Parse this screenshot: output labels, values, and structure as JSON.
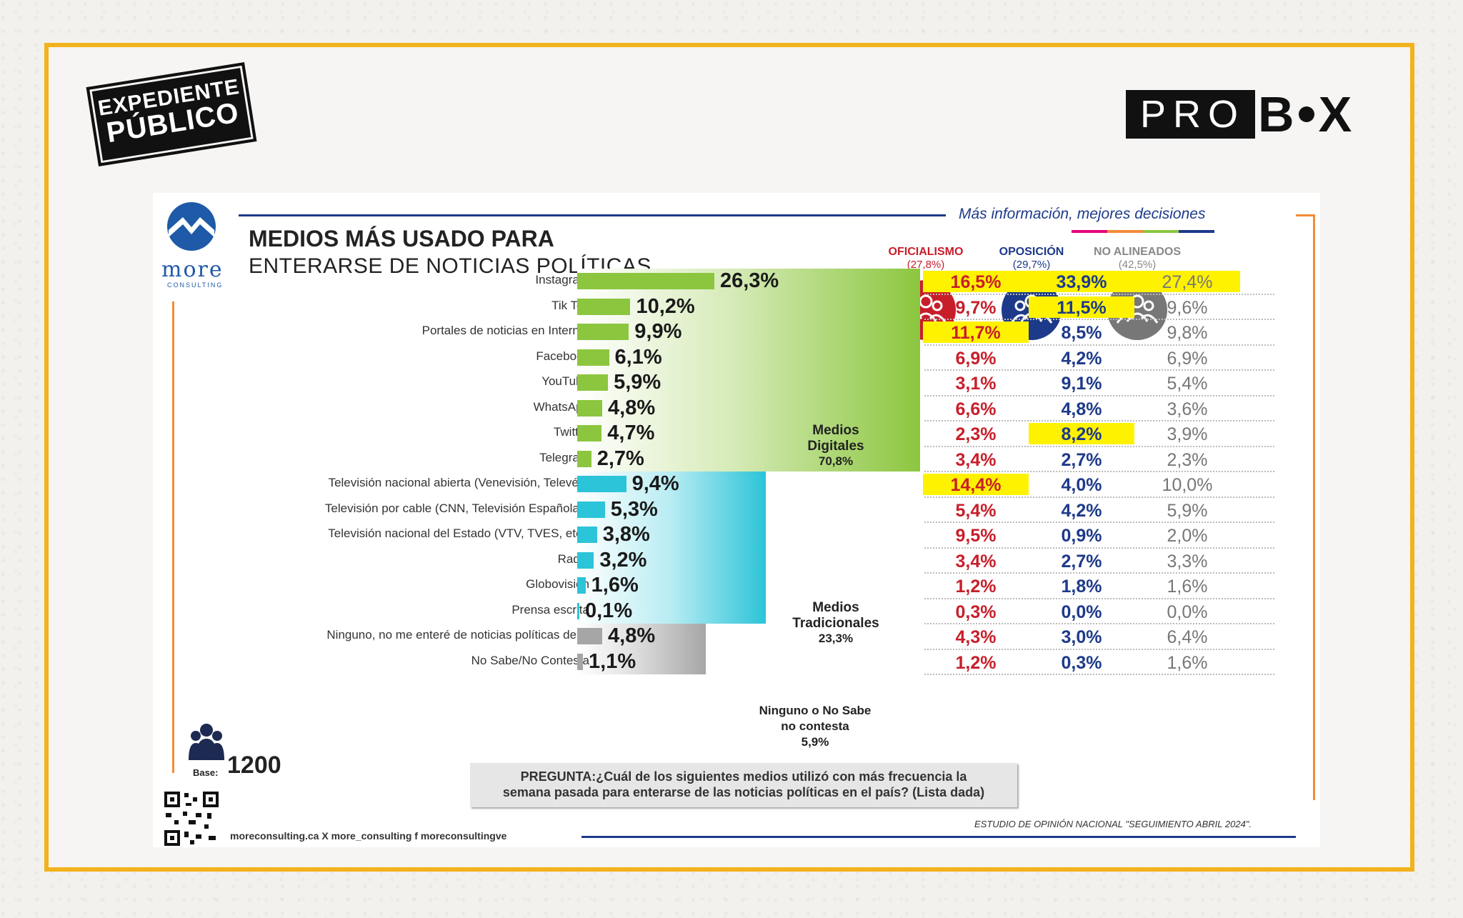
{
  "header": {
    "left_logo": "EXPEDIENTE PÚBLICO",
    "left_logo_line1": "EXPEDIENTE",
    "left_logo_line2": "PÚBLICO",
    "right_logo": "PROBOX",
    "right_logo_pro": "PRO",
    "right_logo_b": "B",
    "right_logo_x": "X"
  },
  "card": {
    "brand": "more",
    "brand_sub": "CONSULTING",
    "slogan": "Más información, mejores decisiones",
    "title_line1": "MEDIOS MÁS USADO PARA",
    "title_line2": "ENTERARSE DE NOTICIAS POLÍTICAS",
    "base_label": "Base:",
    "base_value": "1200",
    "question": "PREGUNTA:¿Cuál de los siguientes medios utilizó con más frecuencia la semana pasada para enterarse de las noticias políticas en el país? (Lista dada)",
    "question_line1": "PREGUNTA:¿Cuál de los siguientes medios utilizó con más frecuencia la",
    "question_line2": "semana pasada para enterarse de las noticias políticas en el país? (Lista dada)",
    "social": "moreconsulting.ca  X more_consulting  f moreconsultingve",
    "study": "ESTUDIO DE OPINIÓN NACIONAL \"SEGUIMIENTO ABRIL 2024\"."
  },
  "colors": {
    "digital": "#8cc63f",
    "traditional": "#2cc4d8",
    "none": "#a6a6a6",
    "oficialismo": "#c81e2a",
    "oposicion": "#1d3a8a",
    "no_alineados": "#777777",
    "highlight": "#fff200",
    "frame": "#f2b21c"
  },
  "chart_data": {
    "type": "bar",
    "orientation": "horizontal",
    "categories": [
      "Instagram",
      "Tik Tok",
      "Portales de noticias en Internet",
      "Facebook",
      "YouTube",
      "WhatsApp",
      "Twitter",
      "Telegram",
      "Televisión nacional abierta (Venevisión, Televén)",
      "Televisión por cable (CNN, Televisión Española...",
      "Televisión nacional del Estado (VTV, TVES, etc.)",
      "Radio",
      "Globovisión",
      "Prensa escrita",
      "Ninguno, no me enteré de noticias políticas del...",
      "No Sabe/No Contesta"
    ],
    "values": [
      26.3,
      10.2,
      9.9,
      6.1,
      5.9,
      4.8,
      4.7,
      2.7,
      9.4,
      5.3,
      3.8,
      3.2,
      1.6,
      0.1,
      4.8,
      1.1
    ],
    "value_labels": [
      "26,3%",
      "10,2%",
      "9,9%",
      "6,1%",
      "5,9%",
      "4,8%",
      "4,7%",
      "2,7%",
      "9,4%",
      "5,3%",
      "3,8%",
      "3,2%",
      "1,6%",
      "0,1%",
      "4,8%",
      "1,1%"
    ],
    "row_group": [
      "digital",
      "digital",
      "digital",
      "digital",
      "digital",
      "digital",
      "digital",
      "digital",
      "traditional",
      "traditional",
      "traditional",
      "traditional",
      "traditional",
      "traditional",
      "none",
      "none"
    ],
    "groups": [
      {
        "key": "digital",
        "name_line1": "Medios",
        "name_line2": "Digitales",
        "value": 70.8,
        "value_label": "70,8%"
      },
      {
        "key": "traditional",
        "name_line1": "Medios",
        "name_line2": "Tradicionales",
        "value": 23.3,
        "value_label": "23,3%"
      },
      {
        "key": "none",
        "name_line1": "Ninguno o No Sabe",
        "name_line2": "no contesta",
        "value": 5.9,
        "value_label": "5,9%"
      }
    ],
    "xlim": [
      0,
      30
    ],
    "table": {
      "columns": [
        {
          "name": "OFICIALISMO",
          "share": "(27,8%)",
          "color_key": "oficialismo"
        },
        {
          "name": "OPOSICIÓN",
          "share": "(29,7%)",
          "color_key": "oposicion"
        },
        {
          "name": "NO ALINEADOS",
          "share": "(42,5%)",
          "color_key": "no_alineados"
        }
      ],
      "rows": [
        [
          "16,5%",
          "33,9%",
          "27,4%"
        ],
        [
          "9,7%",
          "11,5%",
          "9,6%"
        ],
        [
          "11,7%",
          "8,5%",
          "9,8%"
        ],
        [
          "6,9%",
          "4,2%",
          "6,9%"
        ],
        [
          "3,1%",
          "9,1%",
          "5,4%"
        ],
        [
          "6,6%",
          "4,8%",
          "3,6%"
        ],
        [
          "2,3%",
          "8,2%",
          "3,9%"
        ],
        [
          "3,4%",
          "2,7%",
          "2,3%"
        ],
        [
          "14,4%",
          "4,0%",
          "10,0%"
        ],
        [
          "5,4%",
          "4,2%",
          "5,9%"
        ],
        [
          "9,5%",
          "0,9%",
          "2,0%"
        ],
        [
          "3,4%",
          "2,7%",
          "3,3%"
        ],
        [
          "1,2%",
          "1,8%",
          "1,6%"
        ],
        [
          "0,3%",
          "0,0%",
          "0,0%"
        ],
        [
          "4,3%",
          "3,0%",
          "6,4%"
        ],
        [
          "1,2%",
          "0,3%",
          "1,6%"
        ]
      ],
      "highlighted": [
        [
          0,
          0
        ],
        [
          0,
          1
        ],
        [
          0,
          2
        ],
        [
          1,
          1
        ],
        [
          2,
          0
        ],
        [
          6,
          1
        ],
        [
          8,
          0
        ]
      ]
    }
  }
}
